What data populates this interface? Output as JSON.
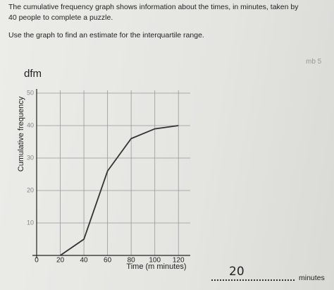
{
  "question": {
    "lines": [
      "The cumulative frequency graph shows information about the times, in minutes, taken by",
      "40 people to complete a puzzle."
    ],
    "instruction": "Use the graph to find an estimate for the interquartile range."
  },
  "annotation": "dfm",
  "margin_note": "mb 5",
  "chart_data": {
    "type": "line",
    "xlabel": "Time (m minutes)",
    "ylabel": "Cumulative frequency",
    "x": [
      20,
      40,
      60,
      80,
      100,
      120
    ],
    "series": [
      {
        "name": "Cumulative frequency",
        "color": "#333333",
        "values": [
          0,
          5,
          26,
          36,
          39,
          40
        ]
      }
    ],
    "xlim": [
      0,
      130
    ],
    "ylim": [
      0,
      50
    ],
    "xticks": [
      0,
      20,
      40,
      60,
      80,
      100,
      120
    ],
    "yticks": [
      10,
      20,
      30,
      40,
      50
    ],
    "grid": true
  },
  "answer": {
    "value": "20",
    "unit": "minutes"
  }
}
